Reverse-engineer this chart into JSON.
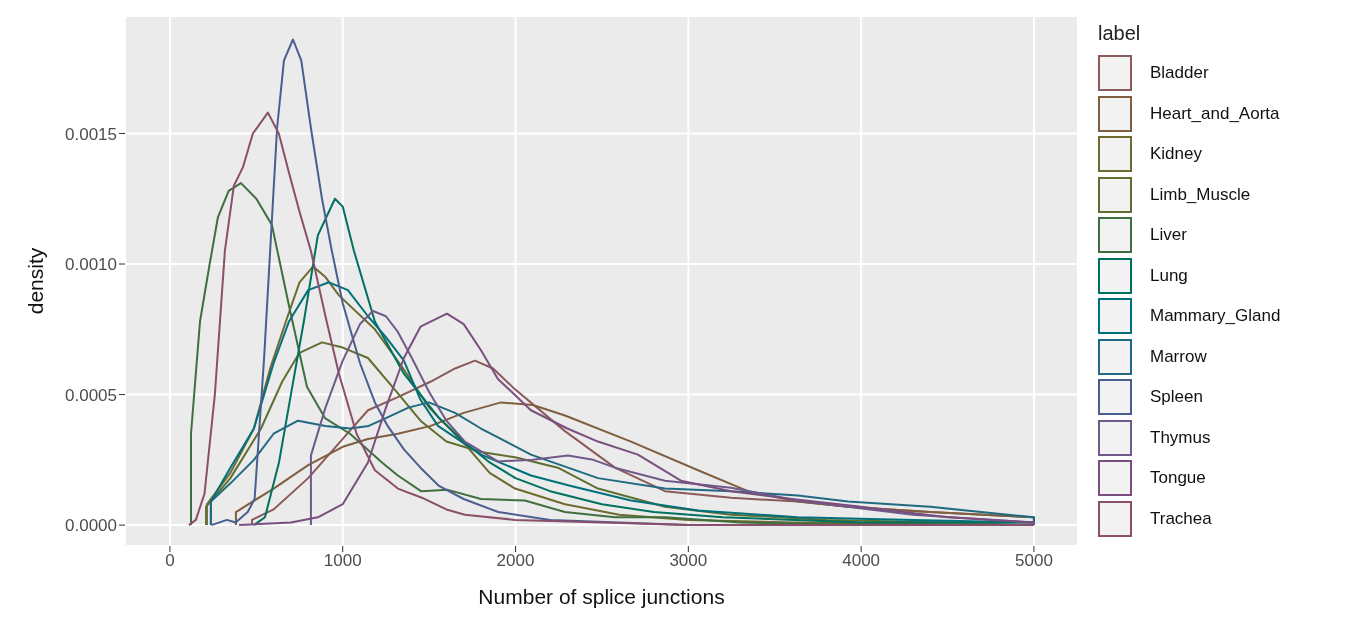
{
  "chart_data": {
    "type": "line",
    "xlabel": "Number of splice junctions",
    "ylabel": "density",
    "legend_title": "label",
    "legend": "right",
    "grid": true,
    "marker": "none",
    "line_style": "solid",
    "xlim": [
      -260,
      5255
    ],
    "xticks": [
      0,
      1000,
      2000,
      3000,
      4000,
      5000
    ],
    "ylim": [
      -8e-05,
      0.00195
    ],
    "yticks": [
      {
        "value": 0,
        "label": "0.0000"
      },
      {
        "value": 0.0005,
        "label": "0.0005"
      },
      {
        "value": 0.001,
        "label": "0.0010"
      },
      {
        "value": 0.0015,
        "label": "0.0015"
      }
    ],
    "series": [
      {
        "name": "Bladder",
        "color": "#8b5a5a",
        "x": [
          475,
          475,
          600,
          800,
          1000,
          1146,
          1319,
          1510,
          1650,
          1765,
          1870,
          1997,
          2286,
          2575,
          2865,
          3247,
          3634,
          3924,
          4400,
          5000,
          5000
        ],
        "values": [
          0,
          2e-05,
          6e-05,
          0.00018,
          0.00033,
          0.00044,
          0.00049,
          0.00055,
          0.0006,
          0.00063,
          0.0006,
          0.00052,
          0.00036,
          0.00022,
          0.00013,
          0.000105,
          9e-05,
          7e-05,
          5e-05,
          3e-05,
          0
        ]
      },
      {
        "name": "Heart_and_Aorta",
        "color": "#7f5f3f",
        "x": [
          382,
          382,
          600,
          800,
          1000,
          1146,
          1319,
          1510,
          1700,
          1916,
          2100,
          2286,
          2668,
          3056,
          3345,
          3634,
          3924,
          4400,
          5000,
          5000
        ],
        "values": [
          0,
          5e-05,
          0.00014,
          0.00023,
          0.0003,
          0.00033,
          0.00035,
          0.00038,
          0.00043,
          0.00047,
          0.00046,
          0.00042,
          0.00032,
          0.00021,
          0.00013,
          9e-05,
          7e-05,
          5e-05,
          3e-05,
          0
        ]
      },
      {
        "name": "Kidney",
        "color": "#6f6a2f",
        "x": [
          214,
          214,
          350,
          486,
          580,
          671,
          750,
          828,
          900,
          978,
          1186,
          1350,
          1500,
          1707,
          1850,
          1997,
          2286,
          2600,
          3000,
          3600,
          5000
        ],
        "values": [
          0,
          8e-05,
          0.0002,
          0.00037,
          0.0006,
          0.00078,
          0.00093,
          0.00099,
          0.00095,
          0.00088,
          0.00075,
          0.0006,
          0.00045,
          0.00031,
          0.0002,
          0.00014,
          8e-05,
          4e-05,
          2e-05,
          1e-05,
          0
        ]
      },
      {
        "name": "Limb_Muscle",
        "color": "#5f6f30",
        "x": [
          209,
          209,
          350,
          527,
          650,
          750,
          880,
          1000,
          1146,
          1300,
          1450,
          1600,
          1800,
          1997,
          2245,
          2477,
          2865,
          3247,
          3800,
          4500,
          5000
        ],
        "values": [
          0,
          7e-05,
          0.00018,
          0.00037,
          0.00055,
          0.00066,
          0.0007,
          0.00068,
          0.00064,
          0.00052,
          0.0004,
          0.00032,
          0.00028,
          0.00026,
          0.00022,
          0.00014,
          7e-05,
          4e-05,
          2e-05,
          1e-05,
          0
        ]
      },
      {
        "name": "Liver",
        "color": "#3f6f3f",
        "x": [
          122,
          122,
          174,
          230,
          278,
          340,
          411,
          500,
          590,
          689,
          793,
          897,
          1042,
          1227,
          1319,
          1453,
          1609,
          1800,
          2054,
          2286,
          2575,
          2865,
          3300,
          4000,
          5000
        ],
        "values": [
          0,
          0.00035,
          0.00078,
          0.001,
          0.00118,
          0.00128,
          0.00131,
          0.00125,
          0.00115,
          0.00084,
          0.00053,
          0.00041,
          0.00035,
          0.00024,
          0.00019,
          0.00013,
          0.000135,
          0.0001,
          9.4e-05,
          5e-05,
          3e-05,
          3e-05,
          1e-05,
          0,
          0
        ]
      },
      {
        "name": "Lung",
        "color": "#00705f",
        "x": [
          486,
          550,
          631,
          700,
          775,
          856,
          955,
          1000,
          1065,
          1186,
          1354,
          1557,
          1701,
          1850,
          2000,
          2200,
          2500,
          2800,
          3200,
          4000,
          5000,
          5000
        ],
        "values": [
          0,
          3e-05,
          0.00024,
          0.0005,
          0.00078,
          0.00111,
          0.00125,
          0.00122,
          0.00105,
          0.00078,
          0.00058,
          0.00041,
          0.00032,
          0.00024,
          0.00018,
          0.00013,
          8e-05,
          5e-05,
          3e-05,
          1e-05,
          1e-05,
          0
        ]
      },
      {
        "name": "Mammary_Gland",
        "color": "#00707a",
        "x": [
          237,
          237,
          350,
          486,
          600,
          689,
          800,
          920,
          1030,
          1146,
          1250,
          1354,
          1450,
          1551,
          1800,
          2089,
          2321,
          2668,
          3056,
          3634,
          4300,
          5000,
          5000
        ],
        "values": [
          0,
          9e-05,
          0.00022,
          0.00037,
          0.00062,
          0.00078,
          0.0009,
          0.00093,
          0.0009,
          0.0008,
          0.00072,
          0.00063,
          0.00048,
          0.00038,
          0.00027,
          0.00019,
          0.00015,
          9.4e-05,
          5.6e-05,
          3e-05,
          2e-05,
          1e-05,
          0
        ]
      },
      {
        "name": "Marrow",
        "color": "#1f6a80",
        "x": [
          237,
          237,
          350,
          486,
          600,
          741,
          900,
          1042,
          1150,
          1250,
          1380,
          1499,
          1650,
          1800,
          2089,
          2477,
          2865,
          3247,
          3634,
          3924,
          4400,
          5000,
          5000
        ],
        "values": [
          0,
          9e-05,
          0.00016,
          0.00025,
          0.00035,
          0.0004,
          0.00038,
          0.00037,
          0.00038,
          0.00041,
          0.00045,
          0.00047,
          0.00043,
          0.00037,
          0.00027,
          0.00018,
          0.00014,
          0.00013,
          0.000113,
          9e-05,
          7e-05,
          3e-05,
          0
        ]
      },
      {
        "name": "Spleen",
        "color": "#4a5f8f",
        "x": [
          240,
          330,
          380,
          450,
          490,
          545,
          620,
          660,
          712,
          760,
          816,
          880,
          937,
          1000,
          1100,
          1186,
          1260,
          1354,
          1450,
          1557,
          1700,
          1900,
          2200,
          2600,
          3000,
          5000
        ],
        "values": [
          0,
          2e-05,
          1e-05,
          5e-05,
          0.0001,
          0.00064,
          0.00152,
          0.00178,
          0.00186,
          0.00178,
          0.00152,
          0.00125,
          0.00105,
          0.00085,
          0.00062,
          0.00047,
          0.00038,
          0.00029,
          0.00022,
          0.00015,
          0.0001,
          5e-05,
          2e-05,
          1e-05,
          0,
          0
        ]
      },
      {
        "name": "Thymus",
        "color": "#6f5a8a",
        "x": [
          816,
          816,
          900,
          1000,
          1100,
          1175,
          1250,
          1319,
          1400,
          1500,
          1600,
          1707,
          1898,
          2100,
          2303,
          2450,
          2575,
          2865,
          3247,
          3634,
          3924,
          4300,
          5000,
          5000
        ],
        "values": [
          0,
          0.000267,
          0.00045,
          0.00063,
          0.00077,
          0.00082,
          0.0008,
          0.00074,
          0.00064,
          0.00051,
          0.0004,
          0.00032,
          0.000244,
          0.00025,
          0.000267,
          0.00025,
          0.00022,
          0.00017,
          0.000143,
          9.4e-05,
          7e-05,
          4e-05,
          1e-05,
          0
        ]
      },
      {
        "name": "Tongue",
        "color": "#7a4f7f",
        "x": [
          400,
          700,
          856,
          1000,
          1146,
          1250,
          1354,
          1450,
          1603,
          1700,
          1800,
          1898,
          2089,
          2300,
          2477,
          2708,
          2957,
          3247,
          3600,
          4000,
          4500,
          5000,
          5000
        ],
        "values": [
          0,
          1e-05,
          3e-05,
          8e-05,
          0.00024,
          0.00045,
          0.00064,
          0.00076,
          0.00081,
          0.00077,
          0.00067,
          0.00056,
          0.00044,
          0.00037,
          0.00032,
          0.00027,
          0.00017,
          0.00013,
          0.0001,
          7e-05,
          3e-05,
          1e-05,
          0
        ]
      },
      {
        "name": "Trachea",
        "color": "#8a4f6a",
        "x": [
          110,
          150,
          200,
          260,
          318,
          370,
          422,
          480,
          567,
          630,
          689,
          750,
          816,
          900,
          978,
          1080,
          1186,
          1319,
          1458,
          1600,
          1707,
          1997,
          2500,
          3000,
          5000
        ],
        "values": [
          0,
          2e-05,
          0.00012,
          0.0005,
          0.00105,
          0.0013,
          0.00137,
          0.0015,
          0.00158,
          0.0015,
          0.00135,
          0.0012,
          0.00105,
          0.0008,
          0.00058,
          0.00035,
          0.00021,
          0.00014,
          0.000105,
          6e-05,
          4e-05,
          2e-05,
          1e-05,
          0,
          0
        ]
      }
    ]
  }
}
